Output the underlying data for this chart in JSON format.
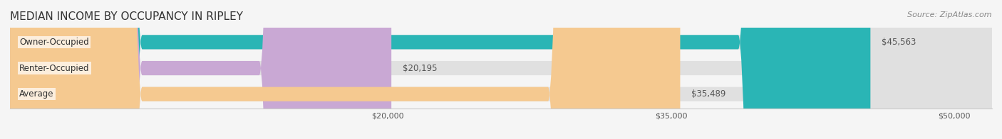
{
  "title": "MEDIAN INCOME BY OCCUPANCY IN RIPLEY",
  "source": "Source: ZipAtlas.com",
  "categories": [
    "Owner-Occupied",
    "Renter-Occupied",
    "Average"
  ],
  "values": [
    45563,
    20195,
    35489
  ],
  "bar_colors": [
    "#2ab5b5",
    "#c9a8d4",
    "#f5c990"
  ],
  "bar_edge_colors": [
    "#2ab5b5",
    "#c9a8d4",
    "#f5c990"
  ],
  "background_color": "#f5f5f5",
  "bar_bg_color": "#e8e8e8",
  "label_values": [
    "$45,563",
    "$20,195",
    "$35,489"
  ],
  "xlim": [
    0,
    52000
  ],
  "xticks": [
    20000,
    35000,
    50000
  ],
  "xtick_labels": [
    "$20,000",
    "$35,000",
    "$50,000"
  ],
  "title_fontsize": 11,
  "source_fontsize": 8,
  "bar_height": 0.55,
  "bar_label_fontsize": 8.5,
  "category_fontsize": 8.5
}
